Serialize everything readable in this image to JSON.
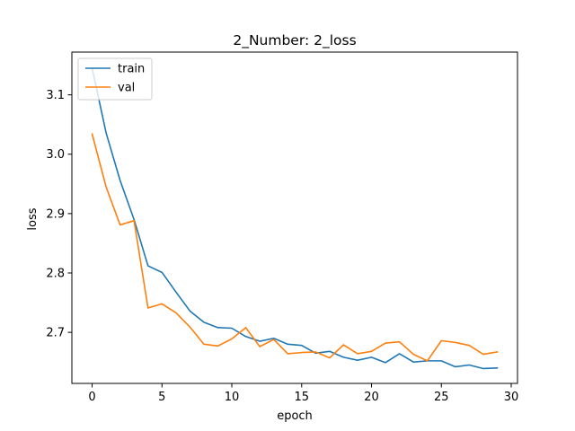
{
  "chart_data": {
    "type": "line",
    "title": "2_Number: 2_loss",
    "xlabel": "epoch",
    "ylabel": "loss",
    "xlim": [
      -1.45,
      30.45
    ],
    "ylim": [
      2.614,
      3.172
    ],
    "xticks": [
      0,
      5,
      10,
      15,
      20,
      25,
      30
    ],
    "yticks": [
      2.7,
      2.8,
      2.9,
      3.0,
      3.1
    ],
    "ytick_labels": [
      "2.7",
      "2.8",
      "2.9",
      "3.0",
      "3.1"
    ],
    "grid": false,
    "legend_position": "upper-left",
    "x": [
      0,
      1,
      2,
      3,
      4,
      5,
      6,
      7,
      8,
      9,
      10,
      11,
      12,
      13,
      14,
      15,
      16,
      17,
      18,
      19,
      20,
      21,
      22,
      23,
      24,
      25,
      26,
      27,
      28,
      29
    ],
    "series": [
      {
        "name": "train",
        "color": "#1f77b4",
        "values": [
          3.145,
          3.036,
          2.956,
          2.89,
          2.812,
          2.801,
          2.768,
          2.736,
          2.717,
          2.708,
          2.707,
          2.693,
          2.685,
          2.69,
          2.68,
          2.678,
          2.665,
          2.668,
          2.658,
          2.653,
          2.658,
          2.649,
          2.664,
          2.65,
          2.652,
          2.652,
          2.642,
          2.645,
          2.639,
          2.64
        ]
      },
      {
        "name": "val",
        "color": "#ff7f0e",
        "values": [
          3.034,
          2.945,
          2.881,
          2.888,
          2.741,
          2.748,
          2.733,
          2.709,
          2.68,
          2.677,
          2.689,
          2.708,
          2.676,
          2.688,
          2.664,
          2.666,
          2.667,
          2.657,
          2.679,
          2.664,
          2.668,
          2.682,
          2.684,
          2.663,
          2.652,
          2.686,
          2.683,
          2.678,
          2.663,
          2.667
        ]
      }
    ]
  }
}
